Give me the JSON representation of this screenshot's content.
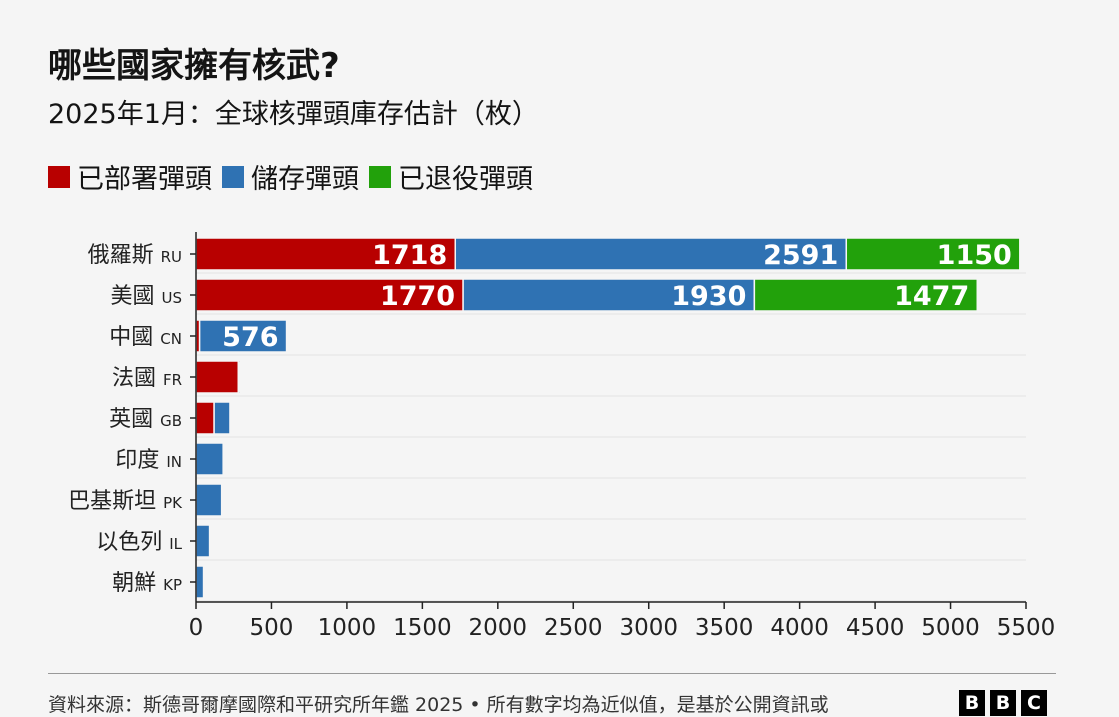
{
  "header": {
    "title": "哪些國家擁有核武?",
    "subtitle": "2025年1月：全球核彈頭庫存估計（枚）"
  },
  "footer": {
    "source": "資料來源：斯德哥爾摩國際和平研究所年鑑 2025 • 所有數字均為近似值，是基於公開資訊或",
    "logo": [
      "B",
      "B",
      "C"
    ]
  },
  "chart_data": {
    "type": "bar",
    "orientation": "horizontal",
    "stacked": true,
    "title": "哪些國家擁有核武?",
    "subtitle": "2025年1月：全球核彈頭庫存估計（枚）",
    "xlim": [
      0,
      5500
    ],
    "xticks": [
      0,
      500,
      1000,
      1500,
      2000,
      2500,
      3000,
      3500,
      4000,
      4500,
      5000,
      5500
    ],
    "grid": "horizontal",
    "legend_placement": "top-left",
    "categories": [
      {
        "name": "俄羅斯",
        "code": "RU"
      },
      {
        "name": "美國",
        "code": "US"
      },
      {
        "name": "中國",
        "code": "CN"
      },
      {
        "name": "法國",
        "code": "FR"
      },
      {
        "name": "英國",
        "code": "GB"
      },
      {
        "name": "印度",
        "code": "IN"
      },
      {
        "name": "巴基斯坦",
        "code": "PK"
      },
      {
        "name": "以色列",
        "code": "IL"
      },
      {
        "name": "朝鮮",
        "code": "KP"
      }
    ],
    "series": [
      {
        "name": "已部署彈頭",
        "color": "#b80000",
        "values": [
          1718,
          1770,
          24,
          280,
          120,
          0,
          0,
          0,
          0
        ]
      },
      {
        "name": "儲存彈頭",
        "color": "#2f72b3",
        "values": [
          2591,
          1930,
          576,
          10,
          105,
          180,
          170,
          90,
          50
        ]
      },
      {
        "name": "已退役彈頭",
        "color": "#22a10b",
        "values": [
          1150,
          1477,
          0,
          0,
          0,
          0,
          0,
          0,
          0
        ]
      }
    ],
    "data_labels_min": 500
  }
}
